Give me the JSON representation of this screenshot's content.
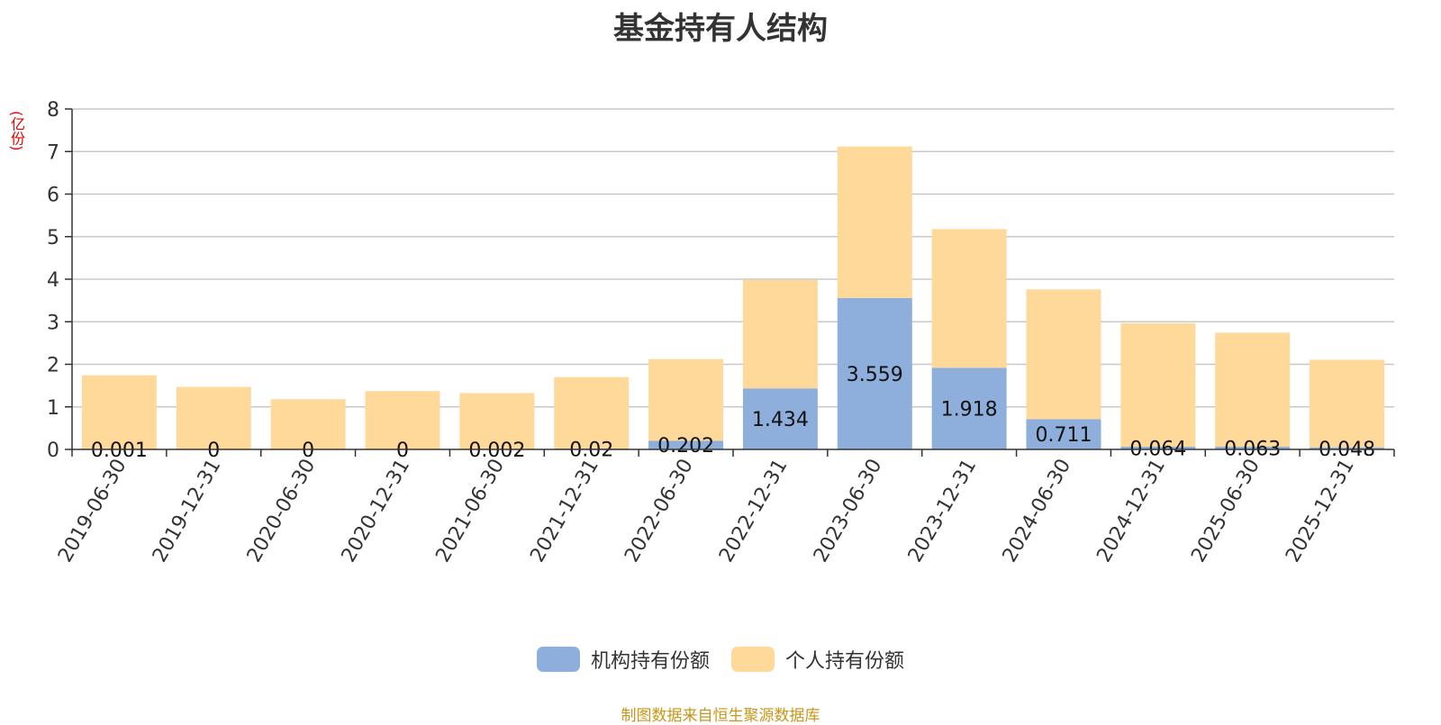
{
  "chart_data": {
    "type": "bar",
    "stacked": true,
    "title": "基金持有人结构",
    "unit_label": "(亿份)",
    "ylim": [
      0,
      8
    ],
    "yticks": [
      0,
      1,
      2,
      3,
      4,
      5,
      6,
      7,
      8
    ],
    "grid": true,
    "legend_position": "bottom",
    "categories": [
      "2019-06-30",
      "2019-12-31",
      "2020-06-30",
      "2020-12-31",
      "2021-06-30",
      "2021-12-31",
      "2022-06-30",
      "2022-12-31",
      "2023-06-30",
      "2023-12-31",
      "2024-06-30",
      "2024-12-31",
      "2025-06-30",
      "2025-12-31"
    ],
    "series": [
      {
        "name": "机构持有份额",
        "color": "#8eaedb",
        "values": [
          0.001,
          0,
          0,
          0,
          0.002,
          0.02,
          0.202,
          1.434,
          3.559,
          1.918,
          0.711,
          0.064,
          0.063,
          0.048
        ],
        "labels": [
          "0.001",
          "0",
          "0",
          "0",
          "0.002",
          "0.02",
          "0.202",
          "1.434",
          "3.559",
          "1.918",
          "0.711",
          "0.064",
          "0.063",
          "0.048"
        ]
      },
      {
        "name": "个人持有份额",
        "color": "#ffd99a",
        "values": [
          1.74,
          1.47,
          1.18,
          1.37,
          1.32,
          1.68,
          1.92,
          2.55,
          3.56,
          3.26,
          3.05,
          2.9,
          2.68,
          2.06
        ]
      }
    ]
  },
  "source_note": "制图数据来自恒生聚源数据库"
}
